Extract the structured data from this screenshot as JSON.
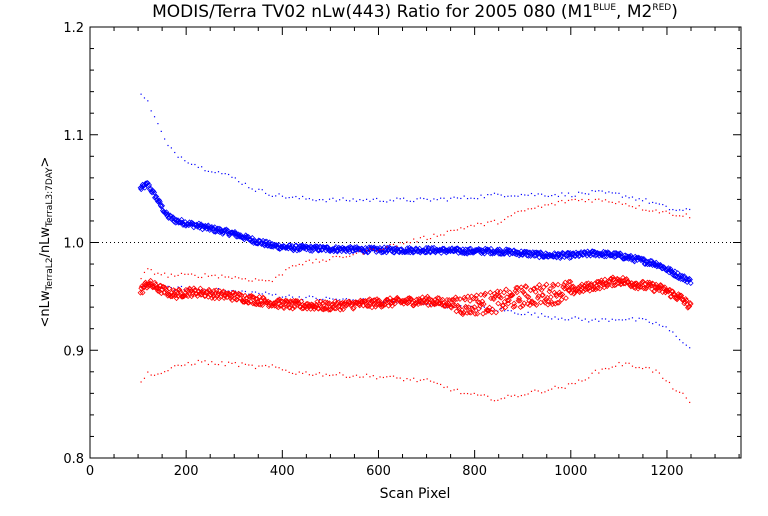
{
  "chart_data": {
    "type": "scatter",
    "title": {
      "main": "MODIS/Terra TV02 nLw(443) Ratio for 2005 080 (M1",
      "sup1": "BLUE",
      "mid": ", M2",
      "sup2": "RED",
      "end": ")"
    },
    "xlabel": "Scan Pixel",
    "ylabel": {
      "open": "<nLw",
      "sub1": "TerraL2",
      "mid": "/nLw",
      "sub2": "TerraL3:7DAY",
      "close": ">"
    },
    "xlim": [
      0,
      1354
    ],
    "ylim": [
      0.8,
      1.2
    ],
    "xticks": [
      0,
      200,
      400,
      600,
      800,
      1000,
      1200
    ],
    "yticks": [
      0.8,
      0.9,
      1.0,
      1.1,
      1.2
    ],
    "xtick_labels": [
      "0",
      "200",
      "400",
      "600",
      "800",
      "1000",
      "1200"
    ],
    "ytick_labels": [
      "0.8",
      "0.9",
      "1.0",
      "1.1",
      "1.2"
    ],
    "reference_line": 1.0,
    "grid": false,
    "series": [
      {
        "color": "#0000ff",
        "marker": "diamond",
        "x": [
          105,
          120,
          140,
          160,
          180,
          200,
          230,
          260,
          300,
          340,
          380,
          420,
          500,
          600,
          700,
          780,
          850,
          900,
          950,
          1000,
          1050,
          1100,
          1150,
          1180,
          1200,
          1230,
          1250
        ],
        "mean": [
          1.05,
          1.054,
          1.04,
          1.025,
          1.02,
          1.018,
          1.015,
          1.012,
          1.008,
          1.002,
          0.997,
          0.995,
          0.994,
          0.993,
          0.993,
          0.992,
          0.992,
          0.99,
          0.988,
          0.988,
          0.99,
          0.988,
          0.983,
          0.98,
          0.975,
          0.968,
          0.964
        ],
        "upper": [
          1.14,
          1.13,
          1.11,
          1.09,
          1.082,
          1.077,
          1.07,
          1.067,
          1.06,
          1.05,
          1.045,
          1.042,
          1.04,
          1.04,
          1.04,
          1.042,
          1.045,
          1.045,
          1.045,
          1.045,
          1.047,
          1.045,
          1.04,
          1.036,
          1.032,
          1.03,
          1.03
        ],
        "lower": [
          0.96,
          0.962,
          0.96,
          0.958,
          0.958,
          0.958,
          0.957,
          0.956,
          0.955,
          0.954,
          0.952,
          0.95,
          0.948,
          0.946,
          0.944,
          0.94,
          0.938,
          0.935,
          0.932,
          0.93,
          0.928,
          0.93,
          0.928,
          0.925,
          0.92,
          0.91,
          0.9
        ]
      },
      {
        "color": "#ff0000",
        "marker": "diamond",
        "x": [
          105,
          120,
          140,
          160,
          180,
          200,
          230,
          260,
          300,
          340,
          380,
          420,
          500,
          600,
          700,
          780,
          850,
          900,
          950,
          1000,
          1050,
          1100,
          1150,
          1180,
          1200,
          1230,
          1250
        ],
        "mean": [
          0.955,
          0.962,
          0.958,
          0.954,
          0.952,
          0.954,
          0.954,
          0.952,
          0.95,
          0.947,
          0.944,
          0.942,
          0.941,
          0.944,
          0.946,
          0.942,
          0.945,
          0.95,
          0.952,
          0.955,
          0.96,
          0.965,
          0.96,
          0.958,
          0.955,
          0.948,
          0.94
        ],
        "upper": [
          0.968,
          0.975,
          0.972,
          0.97,
          0.97,
          0.97,
          0.97,
          0.97,
          0.968,
          0.966,
          0.965,
          0.98,
          0.985,
          0.995,
          1.005,
          1.015,
          1.02,
          1.03,
          1.035,
          1.04,
          1.04,
          1.038,
          1.032,
          1.03,
          1.028,
          1.026,
          1.025
        ],
        "lower": [
          0.87,
          0.88,
          0.878,
          0.882,
          0.885,
          0.888,
          0.89,
          0.888,
          0.888,
          0.885,
          0.885,
          0.88,
          0.878,
          0.876,
          0.872,
          0.86,
          0.855,
          0.86,
          0.864,
          0.868,
          0.88,
          0.888,
          0.885,
          0.88,
          0.87,
          0.86,
          0.848
        ]
      }
    ]
  }
}
